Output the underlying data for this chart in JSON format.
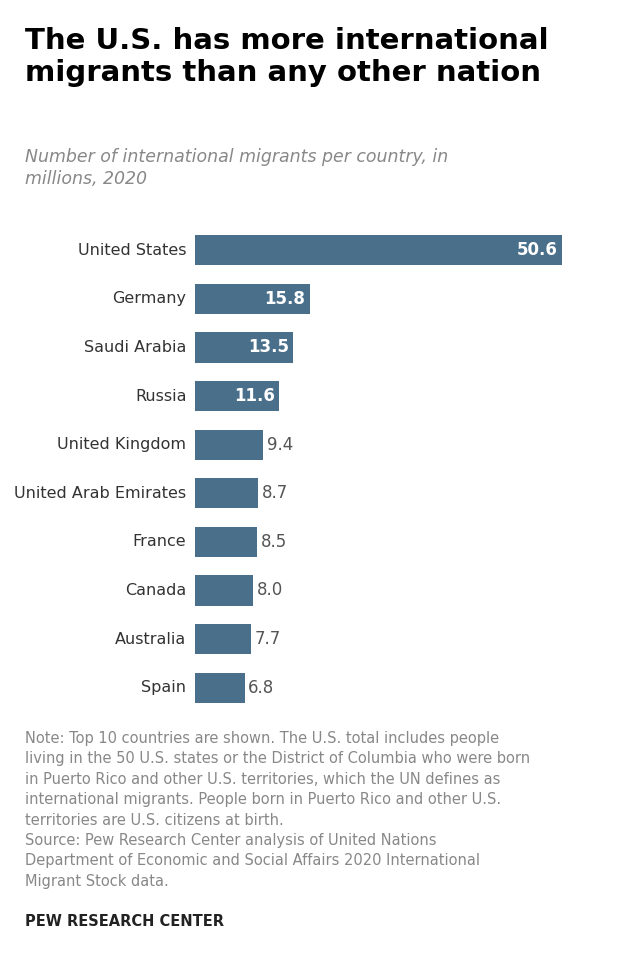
{
  "title": "The U.S. has more international\nmigrants than any other nation",
  "subtitle": "Number of international migrants per country, in\nmillions, 2020",
  "categories": [
    "United States",
    "Germany",
    "Saudi Arabia",
    "Russia",
    "United Kingdom",
    "United Arab Emirates",
    "France",
    "Canada",
    "Australia",
    "Spain"
  ],
  "values": [
    50.6,
    15.8,
    13.5,
    11.6,
    9.4,
    8.7,
    8.5,
    8.0,
    7.7,
    6.8
  ],
  "bar_color": "#4a6f8a",
  "label_color_inside": "#ffffff",
  "label_color_outside": "#555555",
  "inside_threshold": 11.0,
  "note_text": "Note: Top 10 countries are shown. The U.S. total includes people\nliving in the 50 U.S. states or the District of Columbia who were born\nin Puerto Rico and other U.S. territories, which the UN defines as\ninternational migrants. People born in Puerto Rico and other U.S.\nterritories are U.S. citizens at birth.\nSource: Pew Research Center analysis of United Nations\nDepartment of Economic and Social Affairs 2020 International\nMigrant Stock data.",
  "footer": "PEW RESEARCH CENTER",
  "background_color": "#ffffff",
  "xlim": [
    0,
    56
  ],
  "title_fontsize": 21,
  "subtitle_fontsize": 12.5,
  "label_fontsize": 12,
  "category_fontsize": 11.5,
  "note_fontsize": 10.5,
  "footer_fontsize": 10.5
}
